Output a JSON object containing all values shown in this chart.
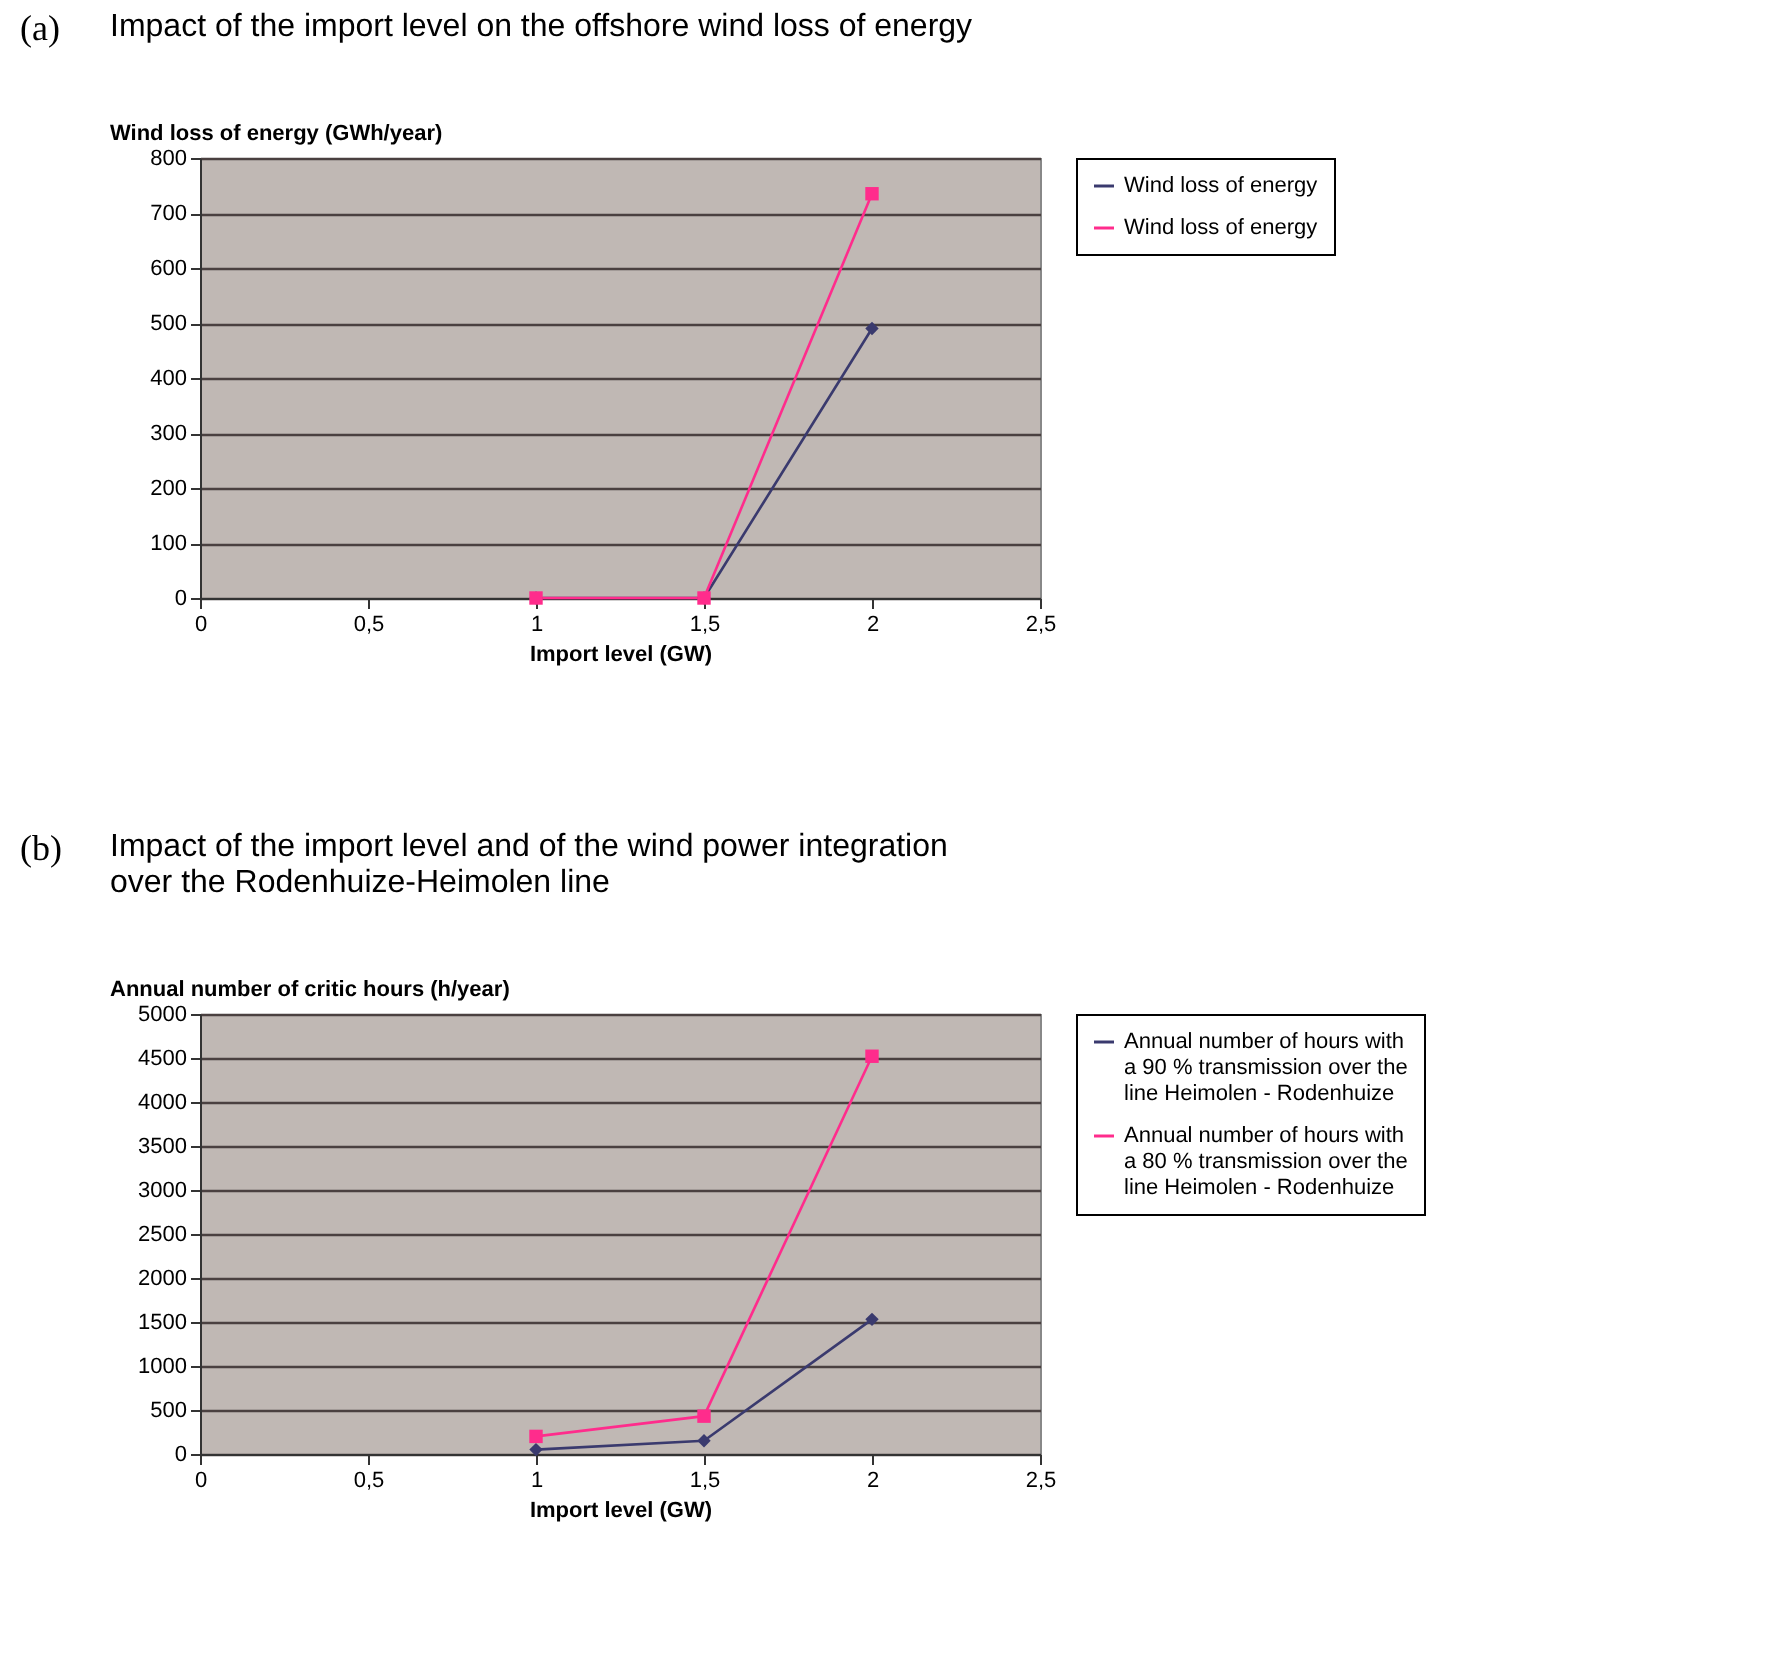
{
  "chart_data": [
    {
      "type": "line",
      "title": "Impact of the import level on the offshore wind loss of energy",
      "xlabel": "Import level (GW)",
      "ylabel": "Wind loss of energy (GWh/year)",
      "annotations": [
        "(a)"
      ],
      "x": [
        1,
        1.5,
        2
      ],
      "xlim": [
        0,
        2.5
      ],
      "xticks": [
        0,
        {
          "value": 0.5,
          "label": "0,5"
        },
        1,
        {
          "value": 1.5,
          "label": "1,5"
        },
        2,
        {
          "value": 2.5,
          "label": "2,5"
        }
      ],
      "ylim": [
        0,
        800
      ],
      "yticks": [
        0,
        100,
        200,
        300,
        400,
        500,
        600,
        700,
        800
      ],
      "grid": "y",
      "legend": "right",
      "line_style": "solid",
      "series": [
        {
          "name": "Wind loss of energy",
          "color": "#3a3a6e",
          "marker": "diamond",
          "values": [
            0,
            0,
            490
          ]
        },
        {
          "name": "Wind loss of energy",
          "color": "#ff2c8c",
          "marker": "square",
          "values": [
            0,
            0,
            735
          ]
        }
      ]
    },
    {
      "type": "line",
      "title": "Impact of the import level and of the wind power integration\nover the Rodenhuize-Heimolen line",
      "xlabel": "Import level (GW)",
      "ylabel": "Annual number of critic hours (h/year)",
      "annotations": [
        "(b)"
      ],
      "x": [
        1,
        1.5,
        2
      ],
      "xlim": [
        0,
        2.5
      ],
      "xticks": [
        0,
        {
          "value": 0.5,
          "label": "0,5"
        },
        1,
        {
          "value": 1.5,
          "label": "1,5"
        },
        2,
        {
          "value": 2.5,
          "label": "2,5"
        }
      ],
      "ylim": [
        0,
        5000
      ],
      "yticks": [
        0,
        500,
        1000,
        1500,
        2000,
        2500,
        3000,
        3500,
        4000,
        4500,
        5000
      ],
      "grid": "y",
      "legend": "right",
      "line_style": "solid",
      "series": [
        {
          "name": "Annual number of hours with\na 90 % transmission over the\nline  Heimolen - Rodenhuize",
          "color": "#3a3a6e",
          "marker": "diamond",
          "values": [
            50,
            150,
            1530
          ]
        },
        {
          "name": "Annual number of hours with\na 80 % transmission over the\nline Heimolen - Rodenhuize",
          "color": "#ff2c8c",
          "marker": "square",
          "values": [
            200,
            430,
            4520
          ]
        }
      ]
    }
  ]
}
